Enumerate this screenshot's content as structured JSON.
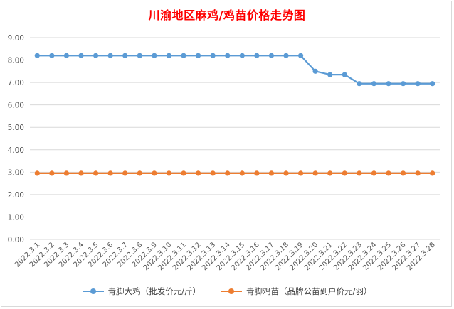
{
  "chart_data": {
    "type": "line",
    "title": "川渝地区麻鸡/鸡苗价格走势图",
    "xlabel": "",
    "ylabel": "",
    "ylim": [
      0,
      9
    ],
    "yticks": [
      "0.00",
      "1.00",
      "2.00",
      "3.00",
      "4.00",
      "5.00",
      "6.00",
      "7.00",
      "8.00",
      "9.00"
    ],
    "grid": true,
    "legend_position": "bottom",
    "categories": [
      "2022.3.1",
      "2022.3.2",
      "2022.3.3",
      "2022.3.4",
      "2022.3.5",
      "2022.3.6",
      "2022.3.7",
      "2022.3.8",
      "2022.3.9",
      "2022.3.10",
      "2022.3.11",
      "2022.3.12",
      "2022.3.13",
      "2022.3.14",
      "2022.3.15",
      "2022.3.16",
      "2022.3.17",
      "2022.3.18",
      "2022.3.19",
      "2022.3.20",
      "2022.3.21",
      "2022.3.22",
      "2022.3.23",
      "2022.3.24",
      "2022.3.25",
      "2022.3.26",
      "2022.3.27",
      "2022.3.28"
    ],
    "series": [
      {
        "name": "青脚大鸡（批发价元/斤）",
        "color": "#5b9bd5",
        "values": [
          8.2,
          8.2,
          8.2,
          8.2,
          8.2,
          8.2,
          8.2,
          8.2,
          8.2,
          8.2,
          8.2,
          8.2,
          8.2,
          8.2,
          8.2,
          8.2,
          8.2,
          8.2,
          8.2,
          7.5,
          7.35,
          7.35,
          6.95,
          6.95,
          6.95,
          6.95,
          6.95,
          6.95
        ]
      },
      {
        "name": "青脚鸡苗（品牌公苗到户价元/羽）",
        "color": "#ed7d31",
        "values": [
          2.95,
          2.95,
          2.95,
          2.95,
          2.95,
          2.95,
          2.95,
          2.95,
          2.95,
          2.95,
          2.95,
          2.95,
          2.95,
          2.95,
          2.95,
          2.95,
          2.95,
          2.95,
          2.95,
          2.95,
          2.95,
          2.95,
          2.95,
          2.95,
          2.95,
          2.95,
          2.95,
          2.95
        ]
      }
    ]
  }
}
